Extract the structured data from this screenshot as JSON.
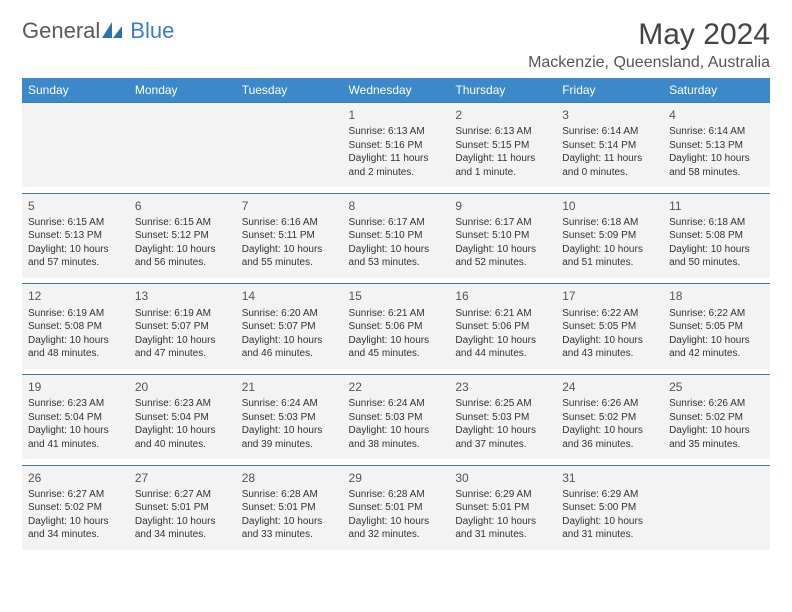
{
  "brand": {
    "part1": "General",
    "part2": "Blue"
  },
  "title": "May 2024",
  "location": "Mackenzie, Queensland, Australia",
  "colors": {
    "header_bg": "#3b89c9",
    "header_text": "#ffffff",
    "cell_bg": "#f3f3f3",
    "row_border": "#3b7fa8",
    "brand_gray": "#5a5a5a",
    "brand_blue": "#3b7fc4"
  },
  "weekdays": [
    "Sunday",
    "Monday",
    "Tuesday",
    "Wednesday",
    "Thursday",
    "Friday",
    "Saturday"
  ],
  "weeks": [
    [
      null,
      null,
      null,
      {
        "n": "1",
        "sr": "Sunrise: 6:13 AM",
        "ss": "Sunset: 5:16 PM",
        "d1": "Daylight: 11 hours",
        "d2": "and 2 minutes."
      },
      {
        "n": "2",
        "sr": "Sunrise: 6:13 AM",
        "ss": "Sunset: 5:15 PM",
        "d1": "Daylight: 11 hours",
        "d2": "and 1 minute."
      },
      {
        "n": "3",
        "sr": "Sunrise: 6:14 AM",
        "ss": "Sunset: 5:14 PM",
        "d1": "Daylight: 11 hours",
        "d2": "and 0 minutes."
      },
      {
        "n": "4",
        "sr": "Sunrise: 6:14 AM",
        "ss": "Sunset: 5:13 PM",
        "d1": "Daylight: 10 hours",
        "d2": "and 58 minutes."
      }
    ],
    [
      {
        "n": "5",
        "sr": "Sunrise: 6:15 AM",
        "ss": "Sunset: 5:13 PM",
        "d1": "Daylight: 10 hours",
        "d2": "and 57 minutes."
      },
      {
        "n": "6",
        "sr": "Sunrise: 6:15 AM",
        "ss": "Sunset: 5:12 PM",
        "d1": "Daylight: 10 hours",
        "d2": "and 56 minutes."
      },
      {
        "n": "7",
        "sr": "Sunrise: 6:16 AM",
        "ss": "Sunset: 5:11 PM",
        "d1": "Daylight: 10 hours",
        "d2": "and 55 minutes."
      },
      {
        "n": "8",
        "sr": "Sunrise: 6:17 AM",
        "ss": "Sunset: 5:10 PM",
        "d1": "Daylight: 10 hours",
        "d2": "and 53 minutes."
      },
      {
        "n": "9",
        "sr": "Sunrise: 6:17 AM",
        "ss": "Sunset: 5:10 PM",
        "d1": "Daylight: 10 hours",
        "d2": "and 52 minutes."
      },
      {
        "n": "10",
        "sr": "Sunrise: 6:18 AM",
        "ss": "Sunset: 5:09 PM",
        "d1": "Daylight: 10 hours",
        "d2": "and 51 minutes."
      },
      {
        "n": "11",
        "sr": "Sunrise: 6:18 AM",
        "ss": "Sunset: 5:08 PM",
        "d1": "Daylight: 10 hours",
        "d2": "and 50 minutes."
      }
    ],
    [
      {
        "n": "12",
        "sr": "Sunrise: 6:19 AM",
        "ss": "Sunset: 5:08 PM",
        "d1": "Daylight: 10 hours",
        "d2": "and 48 minutes."
      },
      {
        "n": "13",
        "sr": "Sunrise: 6:19 AM",
        "ss": "Sunset: 5:07 PM",
        "d1": "Daylight: 10 hours",
        "d2": "and 47 minutes."
      },
      {
        "n": "14",
        "sr": "Sunrise: 6:20 AM",
        "ss": "Sunset: 5:07 PM",
        "d1": "Daylight: 10 hours",
        "d2": "and 46 minutes."
      },
      {
        "n": "15",
        "sr": "Sunrise: 6:21 AM",
        "ss": "Sunset: 5:06 PM",
        "d1": "Daylight: 10 hours",
        "d2": "and 45 minutes."
      },
      {
        "n": "16",
        "sr": "Sunrise: 6:21 AM",
        "ss": "Sunset: 5:06 PM",
        "d1": "Daylight: 10 hours",
        "d2": "and 44 minutes."
      },
      {
        "n": "17",
        "sr": "Sunrise: 6:22 AM",
        "ss": "Sunset: 5:05 PM",
        "d1": "Daylight: 10 hours",
        "d2": "and 43 minutes."
      },
      {
        "n": "18",
        "sr": "Sunrise: 6:22 AM",
        "ss": "Sunset: 5:05 PM",
        "d1": "Daylight: 10 hours",
        "d2": "and 42 minutes."
      }
    ],
    [
      {
        "n": "19",
        "sr": "Sunrise: 6:23 AM",
        "ss": "Sunset: 5:04 PM",
        "d1": "Daylight: 10 hours",
        "d2": "and 41 minutes."
      },
      {
        "n": "20",
        "sr": "Sunrise: 6:23 AM",
        "ss": "Sunset: 5:04 PM",
        "d1": "Daylight: 10 hours",
        "d2": "and 40 minutes."
      },
      {
        "n": "21",
        "sr": "Sunrise: 6:24 AM",
        "ss": "Sunset: 5:03 PM",
        "d1": "Daylight: 10 hours",
        "d2": "and 39 minutes."
      },
      {
        "n": "22",
        "sr": "Sunrise: 6:24 AM",
        "ss": "Sunset: 5:03 PM",
        "d1": "Daylight: 10 hours",
        "d2": "and 38 minutes."
      },
      {
        "n": "23",
        "sr": "Sunrise: 6:25 AM",
        "ss": "Sunset: 5:03 PM",
        "d1": "Daylight: 10 hours",
        "d2": "and 37 minutes."
      },
      {
        "n": "24",
        "sr": "Sunrise: 6:26 AM",
        "ss": "Sunset: 5:02 PM",
        "d1": "Daylight: 10 hours",
        "d2": "and 36 minutes."
      },
      {
        "n": "25",
        "sr": "Sunrise: 6:26 AM",
        "ss": "Sunset: 5:02 PM",
        "d1": "Daylight: 10 hours",
        "d2": "and 35 minutes."
      }
    ],
    [
      {
        "n": "26",
        "sr": "Sunrise: 6:27 AM",
        "ss": "Sunset: 5:02 PM",
        "d1": "Daylight: 10 hours",
        "d2": "and 34 minutes."
      },
      {
        "n": "27",
        "sr": "Sunrise: 6:27 AM",
        "ss": "Sunset: 5:01 PM",
        "d1": "Daylight: 10 hours",
        "d2": "and 34 minutes."
      },
      {
        "n": "28",
        "sr": "Sunrise: 6:28 AM",
        "ss": "Sunset: 5:01 PM",
        "d1": "Daylight: 10 hours",
        "d2": "and 33 minutes."
      },
      {
        "n": "29",
        "sr": "Sunrise: 6:28 AM",
        "ss": "Sunset: 5:01 PM",
        "d1": "Daylight: 10 hours",
        "d2": "and 32 minutes."
      },
      {
        "n": "30",
        "sr": "Sunrise: 6:29 AM",
        "ss": "Sunset: 5:01 PM",
        "d1": "Daylight: 10 hours",
        "d2": "and 31 minutes."
      },
      {
        "n": "31",
        "sr": "Sunrise: 6:29 AM",
        "ss": "Sunset: 5:00 PM",
        "d1": "Daylight: 10 hours",
        "d2": "and 31 minutes."
      },
      null
    ]
  ]
}
